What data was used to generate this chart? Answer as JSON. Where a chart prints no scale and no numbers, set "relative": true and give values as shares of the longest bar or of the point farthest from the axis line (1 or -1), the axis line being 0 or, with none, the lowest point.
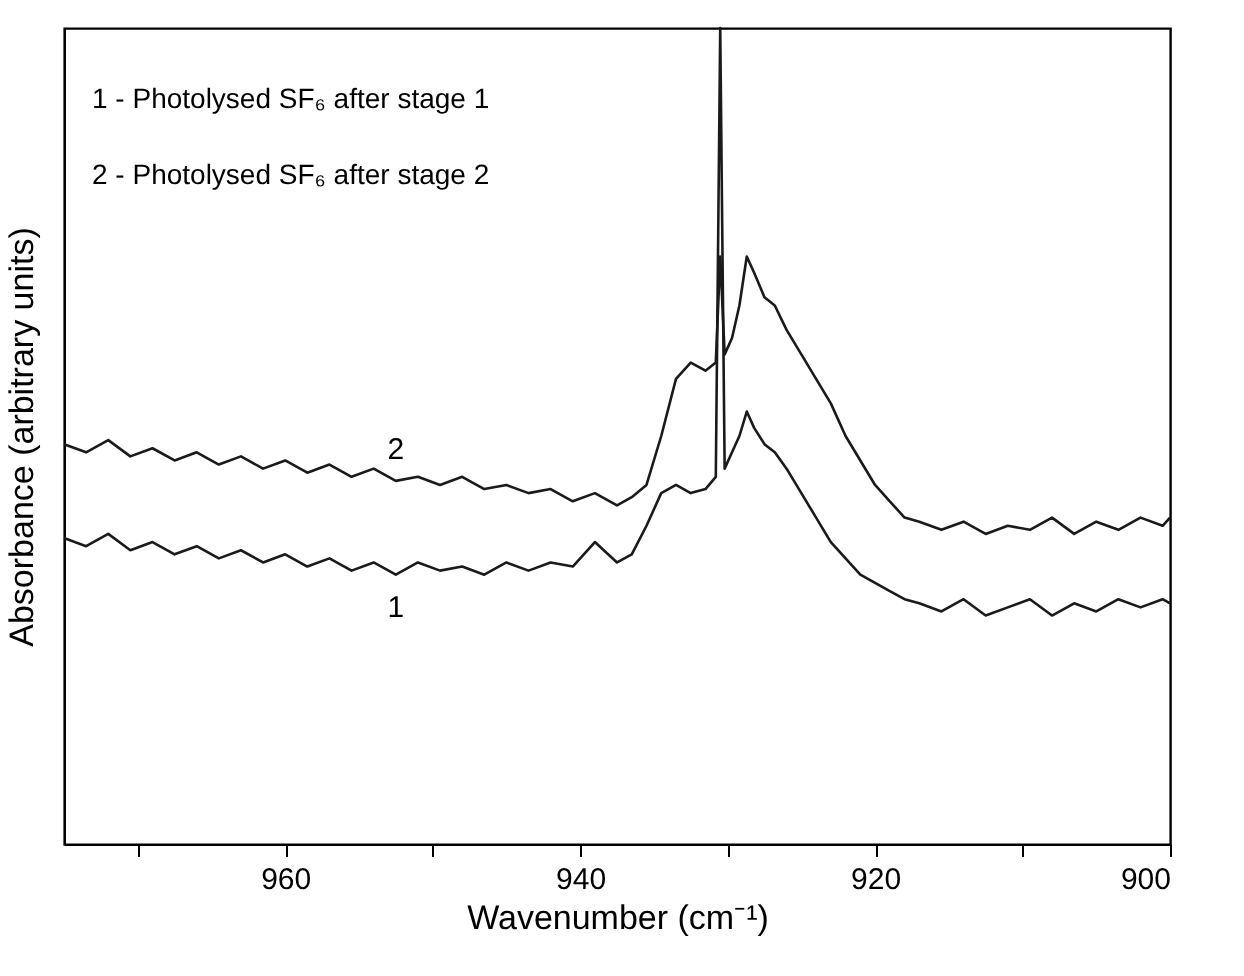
{
  "chart_data": {
    "type": "line",
    "relative": true,
    "xlabel": "Wavenumber (cm⁻¹)",
    "ylabel": "Absorbance (arbitrary units)",
    "annotations": [
      "1 - Photolysed SF₆ after stage 1",
      "2 - Photolysed SF₆ after stage 2"
    ],
    "xlim": [
      975,
      900
    ],
    "xticks": [
      {
        "value": 970,
        "label": null
      },
      960,
      {
        "value": 950,
        "label": null
      },
      940,
      {
        "value": 930,
        "label": null
      },
      920,
      {
        "value": 910,
        "label": null
      },
      900
    ],
    "grid": false,
    "marker": "none",
    "line_style": "solid",
    "x": [
      975,
      973.5,
      972,
      970.5,
      969,
      967.5,
      966,
      964.5,
      963,
      961.5,
      960,
      958.5,
      957,
      955.5,
      954,
      952.5,
      951,
      949.5,
      948,
      946.5,
      945,
      943.5,
      942,
      940.5,
      939,
      937.5,
      936.5,
      935.5,
      934.5,
      933.5,
      932.5,
      931.5,
      930.8,
      930.5,
      930.2,
      929.7,
      929.2,
      928.7,
      928.2,
      927.5,
      926.8,
      926,
      925,
      924,
      923,
      922,
      921,
      920,
      919,
      918,
      917,
      915.5,
      914,
      912.5,
      911,
      909.5,
      908,
      906.5,
      905,
      903.5,
      902,
      900.5,
      900
    ],
    "series": [
      {
        "name": "1",
        "color": "#1a1a1a",
        "values": [
          0.375,
          0.365,
          0.38,
          0.36,
          0.37,
          0.355,
          0.365,
          0.35,
          0.36,
          0.345,
          0.355,
          0.34,
          0.35,
          0.335,
          0.345,
          0.33,
          0.345,
          0.335,
          0.34,
          0.33,
          0.345,
          0.335,
          0.345,
          0.34,
          0.37,
          0.345,
          0.355,
          0.39,
          0.43,
          0.44,
          0.43,
          0.435,
          0.45,
          1.0,
          0.46,
          0.48,
          0.5,
          0.53,
          0.51,
          0.49,
          0.48,
          0.46,
          0.43,
          0.4,
          0.37,
          0.35,
          0.33,
          0.32,
          0.31,
          0.3,
          0.295,
          0.285,
          0.3,
          0.28,
          0.29,
          0.3,
          0.28,
          0.295,
          0.285,
          0.3,
          0.29,
          0.3,
          0.295
        ]
      },
      {
        "name": "2",
        "color": "#1a1a1a",
        "values": [
          0.49,
          0.48,
          0.495,
          0.475,
          0.485,
          0.47,
          0.48,
          0.465,
          0.475,
          0.46,
          0.47,
          0.455,
          0.465,
          0.45,
          0.46,
          0.445,
          0.45,
          0.44,
          0.45,
          0.435,
          0.44,
          0.43,
          0.435,
          0.42,
          0.43,
          0.415,
          0.425,
          0.44,
          0.5,
          0.57,
          0.59,
          0.58,
          0.59,
          0.72,
          0.6,
          0.62,
          0.66,
          0.72,
          0.7,
          0.67,
          0.66,
          0.63,
          0.6,
          0.57,
          0.54,
          0.5,
          0.47,
          0.44,
          0.42,
          0.4,
          0.395,
          0.385,
          0.395,
          0.38,
          0.39,
          0.385,
          0.4,
          0.38,
          0.395,
          0.385,
          0.4,
          0.39,
          0.4
        ]
      }
    ]
  }
}
